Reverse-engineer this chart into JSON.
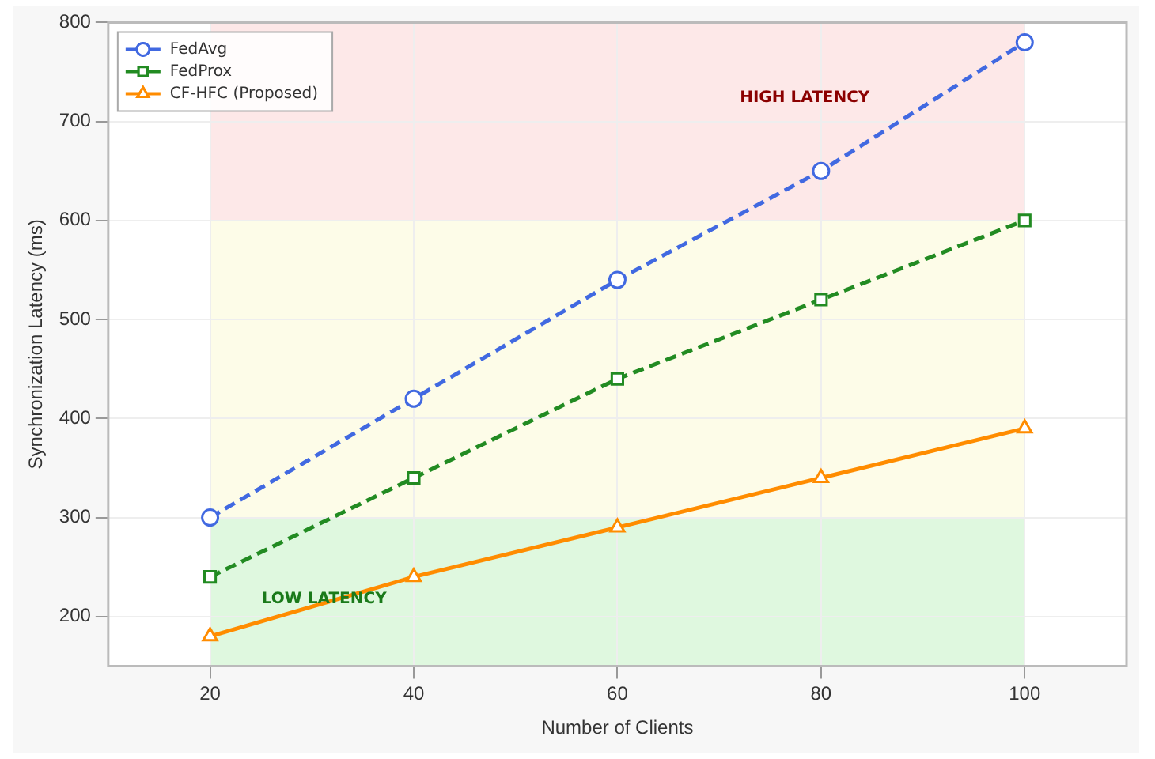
{
  "chart_data": {
    "type": "line",
    "xlabel": "Number of Clients",
    "ylabel": "Synchronization Latency (ms)",
    "x": [
      20,
      40,
      60,
      80,
      100
    ],
    "series": [
      {
        "name": "FedAvg",
        "color": "#4169e1",
        "values": [
          300,
          420,
          540,
          650,
          780
        ],
        "marker": "circle",
        "line_style": "dashed"
      },
      {
        "name": "FedProx",
        "color": "#228b22",
        "values": [
          240,
          340,
          440,
          520,
          600
        ],
        "marker": "square",
        "line_style": "dashed"
      },
      {
        "name": "CF-HFC (Proposed)",
        "color": "#ff8c00",
        "values": [
          180,
          240,
          290,
          340,
          390
        ],
        "marker": "triangle",
        "line_style": "solid"
      }
    ],
    "xlim": [
      10,
      110
    ],
    "xticks": [
      20,
      40,
      60,
      80,
      100
    ],
    "ylim": [
      150,
      800
    ],
    "yticks": [
      200,
      300,
      400,
      500,
      600,
      700,
      800
    ],
    "bands": [
      {
        "axis": "y",
        "from": 150,
        "to": 300,
        "color": "#dff8df",
        "label": "LOW LATENCY"
      },
      {
        "axis": "y",
        "from": 300,
        "to": 600,
        "color": "#fdfce8"
      },
      {
        "axis": "y",
        "from": 600,
        "to": 800,
        "color": "#fde8e8",
        "label": "HIGH LATENCY"
      }
    ],
    "grid": true,
    "legend": "top left"
  }
}
